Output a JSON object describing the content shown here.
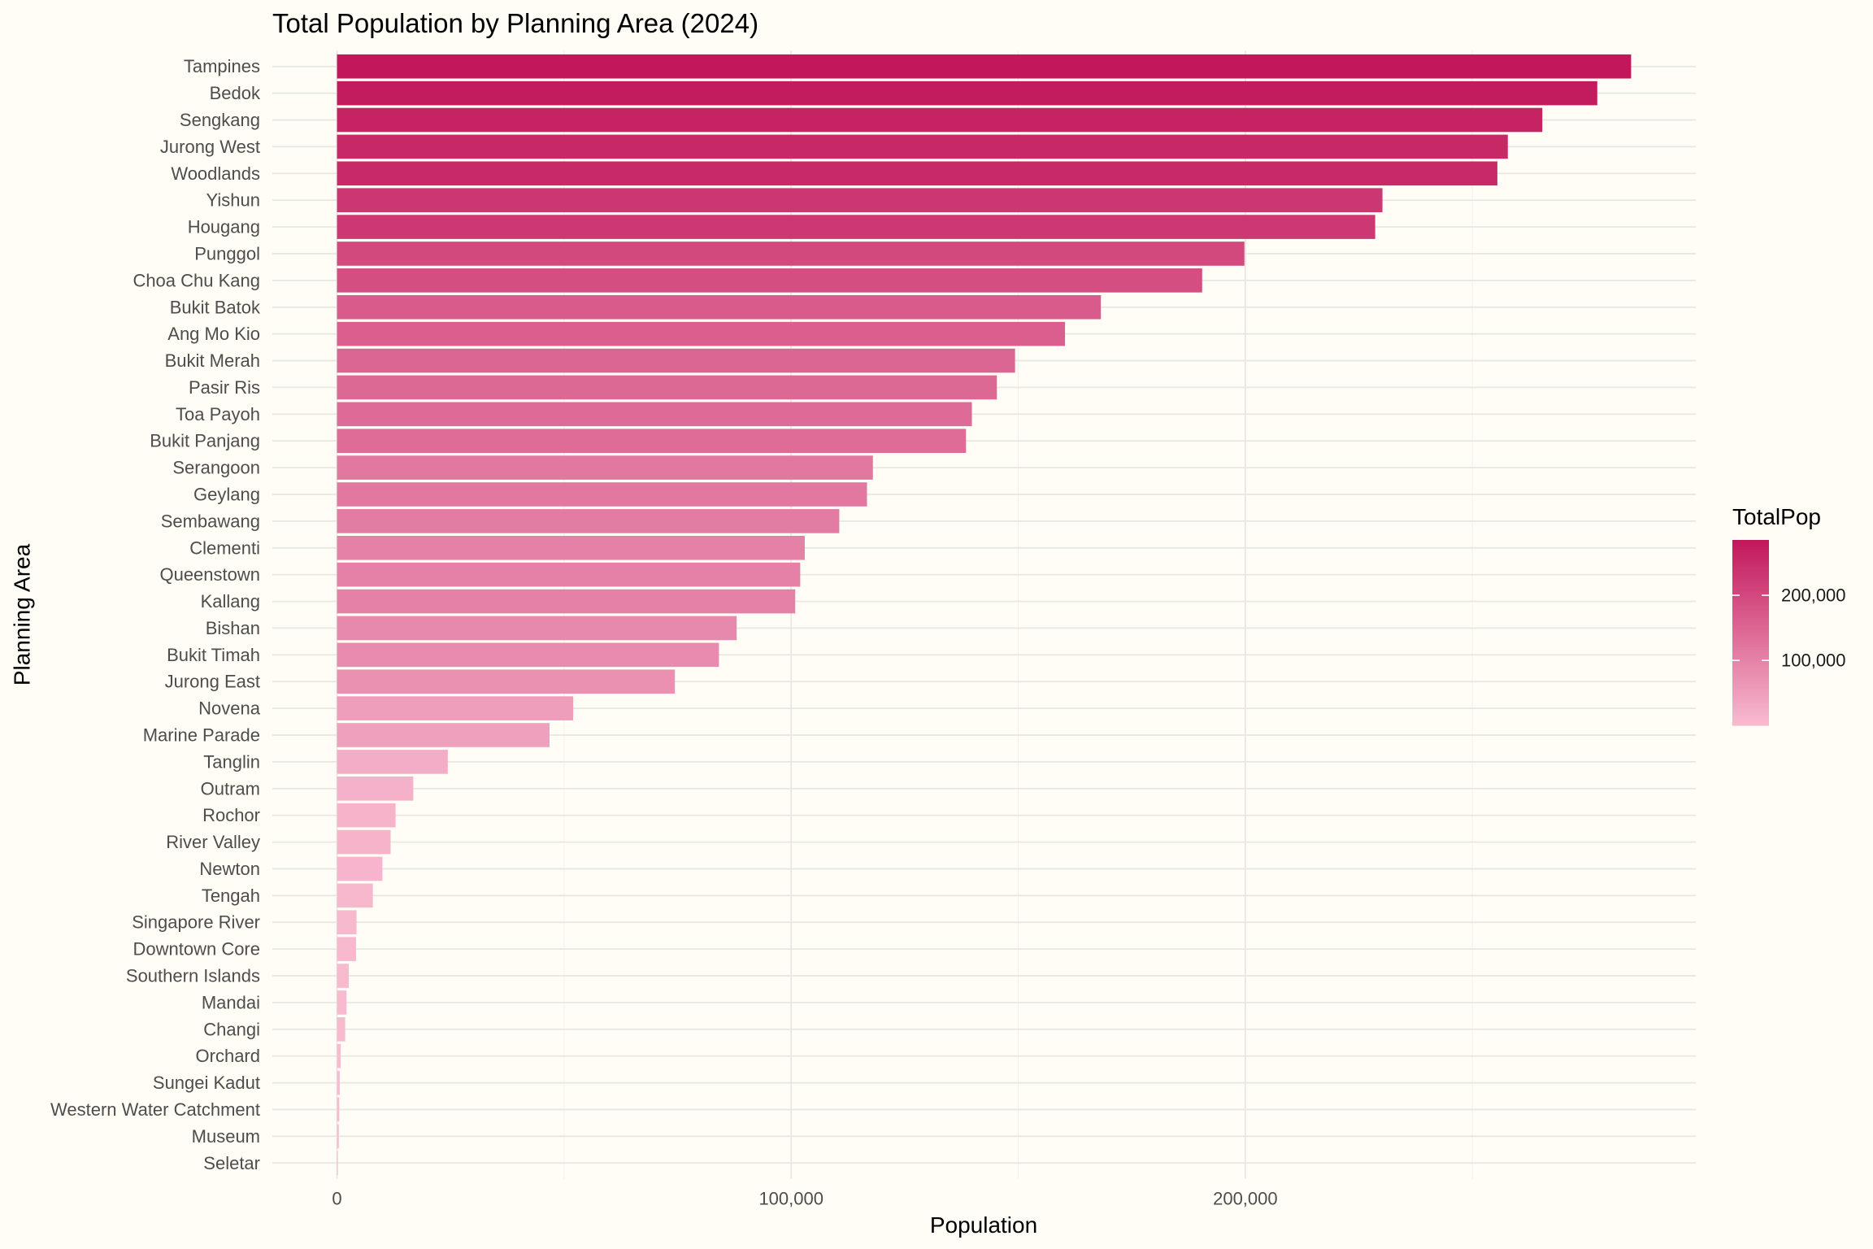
{
  "chart_data": {
    "type": "bar",
    "orientation": "horizontal",
    "title": "Total Population by Planning Area (2024)",
    "xlabel": "Population",
    "ylabel": "Planning Area",
    "categories": [
      "Tampines",
      "Bedok",
      "Sengkang",
      "Jurong West",
      "Woodlands",
      "Yishun",
      "Hougang",
      "Punggol",
      "Choa Chu Kang",
      "Bukit Batok",
      "Ang Mo Kio",
      "Bukit Merah",
      "Pasir Ris",
      "Toa Payoh",
      "Bukit Panjang",
      "Serangoon",
      "Geylang",
      "Sembawang",
      "Clementi",
      "Queenstown",
      "Kallang",
      "Bishan",
      "Bukit Timah",
      "Jurong East",
      "Novena",
      "Marine Parade",
      "Tanglin",
      "Outram",
      "Rochor",
      "River Valley",
      "Newton",
      "Tengah",
      "Singapore River",
      "Downtown Core",
      "Southern Islands",
      "Mandai",
      "Changi",
      "Orchard",
      "Sungei Kadut",
      "Western Water Catchment",
      "Museum",
      "Seletar"
    ],
    "values": [
      284950,
      277500,
      265400,
      257800,
      255500,
      230200,
      228600,
      199800,
      190500,
      168200,
      160300,
      149300,
      145300,
      139800,
      138500,
      118000,
      116700,
      110600,
      103000,
      102000,
      100900,
      88000,
      84100,
      74400,
      52000,
      46800,
      24400,
      16800,
      12900,
      11800,
      10000,
      7900,
      4300,
      4200,
      2600,
      2100,
      1800,
      800,
      600,
      500,
      400,
      200
    ],
    "xlim": [
      -14240,
      299190
    ],
    "x_ticks": [
      0,
      100000,
      200000
    ],
    "x_tick_labels": [
      "0",
      "100,000",
      "200,000"
    ],
    "grid": true,
    "legend": {
      "title": "TotalPop",
      "type": "colorbar",
      "position": "right",
      "ticks": [
        200000,
        100000
      ],
      "tick_labels": [
        "200,000",
        "100,000"
      ],
      "low_color": "#F8BBD0",
      "high_color": "#C2185B"
    },
    "background": "#FFFDF5"
  }
}
